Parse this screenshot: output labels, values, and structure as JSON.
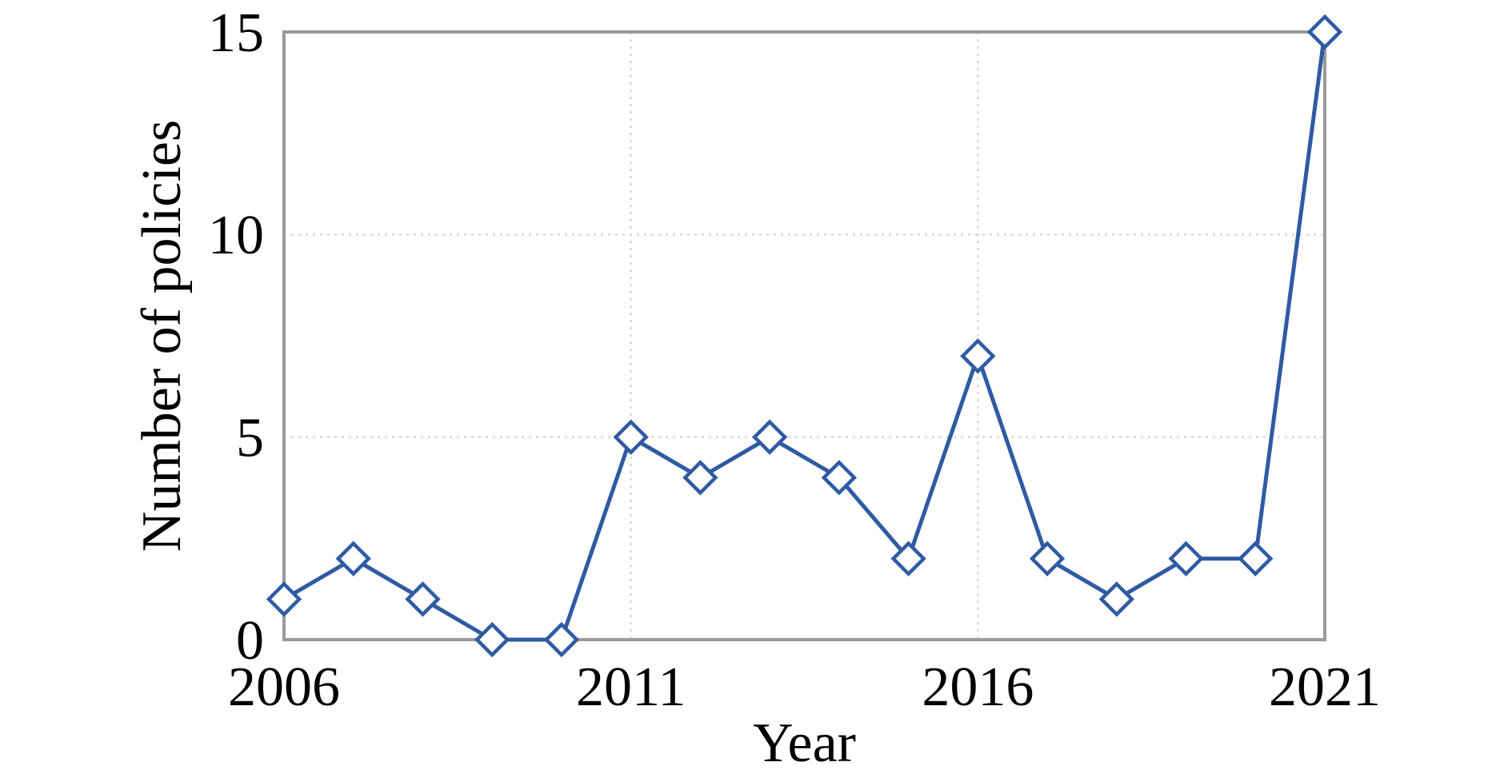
{
  "figure": {
    "background": "#ffffff"
  },
  "chart_data": {
    "type": "line",
    "title": "",
    "xlabel": "Year",
    "ylabel": "Number of policies",
    "x": [
      2006,
      2007,
      2008,
      2009,
      2010,
      2011,
      2012,
      2013,
      2014,
      2015,
      2016,
      2017,
      2018,
      2019,
      2020,
      2021
    ],
    "series": [
      {
        "name": "Number of policies",
        "values": [
          1,
          2,
          1,
          0,
          0,
          5,
          4,
          5,
          4,
          2,
          7,
          2,
          1,
          2,
          2,
          15
        ]
      }
    ],
    "xlim": [
      2006,
      2021
    ],
    "ylim": [
      0,
      15
    ],
    "xticks": [
      2006,
      2011,
      2016,
      2021
    ],
    "yticks": [
      0,
      5,
      10,
      15
    ],
    "xtick_labels": [
      "2006",
      "2011",
      "2016",
      "2021"
    ],
    "ytick_labels": [
      "0",
      "5",
      "10",
      "15"
    ],
    "grid": true,
    "grid_style": "dotted",
    "legend": false,
    "marker": "open-diamond",
    "colors": {
      "line": "#2f5ba3",
      "marker_fill": "#ffffff",
      "marker_stroke": "#2f5ba3",
      "grid": "#d8d8d8",
      "border": "#9a9a9a",
      "text": "#000000",
      "background": "#ffffff"
    }
  }
}
